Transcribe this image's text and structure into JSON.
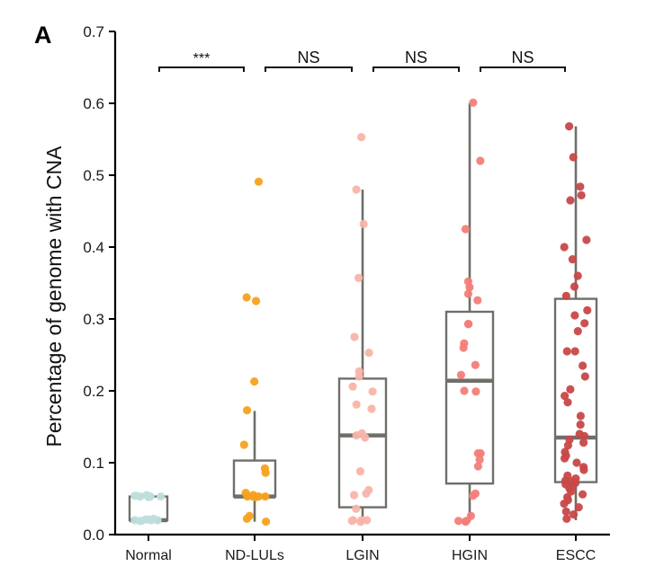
{
  "chart_data": {
    "type": "boxplot",
    "panel_label": "A",
    "title": "",
    "xlabel": "",
    "ylabel": "Percentage of genome with CNA",
    "ylim": [
      0.0,
      0.7
    ],
    "yticks": [
      "0.0",
      "0.1",
      "0.2",
      "0.3",
      "0.4",
      "0.5",
      "0.6",
      "0.7"
    ],
    "ytick_values": [
      0.0,
      0.1,
      0.2,
      0.3,
      0.4,
      0.5,
      0.6,
      0.7
    ],
    "grid": false,
    "legend": "none",
    "categories": [
      "Normal",
      "ND-LULs",
      "LGIN",
      "HGIN",
      "ESCC"
    ],
    "box_color": "#6f6f6a",
    "series": [
      {
        "name": "Normal",
        "color": "#bfdedb",
        "box": {
          "whisker_low": 0.02,
          "q1": 0.02,
          "median": 0.02,
          "q3": 0.053,
          "whisker_high": 0.053
        },
        "points": [
          0.053,
          0.053,
          0.054,
          0.053,
          0.055,
          0.052,
          0.054,
          0.053,
          0.02,
          0.021,
          0.019,
          0.02,
          0.022,
          0.02,
          0.021,
          0.019
        ]
      },
      {
        "name": "ND-LULs",
        "color": "#f5a21d",
        "box": {
          "whisker_low": 0.018,
          "q1": 0.053,
          "median": 0.053,
          "q3": 0.103,
          "whisker_high": 0.172
        },
        "points": [
          0.491,
          0.33,
          0.325,
          0.213,
          0.173,
          0.125,
          0.092,
          0.086,
          0.058,
          0.055,
          0.053,
          0.053,
          0.053,
          0.052,
          0.053,
          0.026,
          0.022,
          0.018
        ]
      },
      {
        "name": "LGIN",
        "color": "#f9b4a9",
        "box": {
          "whisker_low": 0.018,
          "q1": 0.038,
          "median": 0.138,
          "q3": 0.217,
          "whisker_high": 0.48
        },
        "points": [
          0.553,
          0.48,
          0.432,
          0.357,
          0.275,
          0.253,
          0.227,
          0.22,
          0.206,
          0.199,
          0.181,
          0.175,
          0.141,
          0.138,
          0.135,
          0.088,
          0.062,
          0.057,
          0.055,
          0.036,
          0.02,
          0.02,
          0.019,
          0.018,
          0.02
        ]
      },
      {
        "name": "HGIN",
        "color": "#f47d78",
        "box": {
          "whisker_low": 0.018,
          "q1": 0.071,
          "median": 0.214,
          "q3": 0.31,
          "whisker_high": 0.6
        },
        "points": [
          0.601,
          0.52,
          0.425,
          0.352,
          0.344,
          0.335,
          0.326,
          0.293,
          0.293,
          0.266,
          0.26,
          0.236,
          0.222,
          0.2,
          0.199,
          0.113,
          0.113,
          0.104,
          0.095,
          0.057,
          0.054,
          0.026,
          0.019,
          0.018,
          0.019
        ]
      },
      {
        "name": "ESCC",
        "color": "#c84848",
        "box": {
          "whisker_low": 0.02,
          "q1": 0.073,
          "median": 0.135,
          "q3": 0.328,
          "whisker_high": 0.568
        },
        "points": [
          0.568,
          0.525,
          0.484,
          0.472,
          0.465,
          0.41,
          0.4,
          0.383,
          0.36,
          0.345,
          0.332,
          0.312,
          0.305,
          0.294,
          0.283,
          0.255,
          0.255,
          0.235,
          0.22,
          0.202,
          0.193,
          0.184,
          0.165,
          0.153,
          0.14,
          0.137,
          0.132,
          0.128,
          0.124,
          0.115,
          0.11,
          0.106,
          0.1,
          0.094,
          0.09,
          0.082,
          0.078,
          0.075,
          0.074,
          0.072,
          0.07,
          0.067,
          0.064,
          0.06,
          0.056,
          0.052,
          0.048,
          0.043,
          0.038,
          0.032,
          0.028,
          0.022
        ]
      }
    ],
    "comparisons": [
      {
        "from": "Normal",
        "to": "ND-LULs",
        "label": "***"
      },
      {
        "from": "ND-LULs",
        "to": "LGIN",
        "label": "NS"
      },
      {
        "from": "LGIN",
        "to": "HGIN",
        "label": "NS"
      },
      {
        "from": "HGIN",
        "to": "ESCC",
        "label": "NS"
      }
    ]
  }
}
